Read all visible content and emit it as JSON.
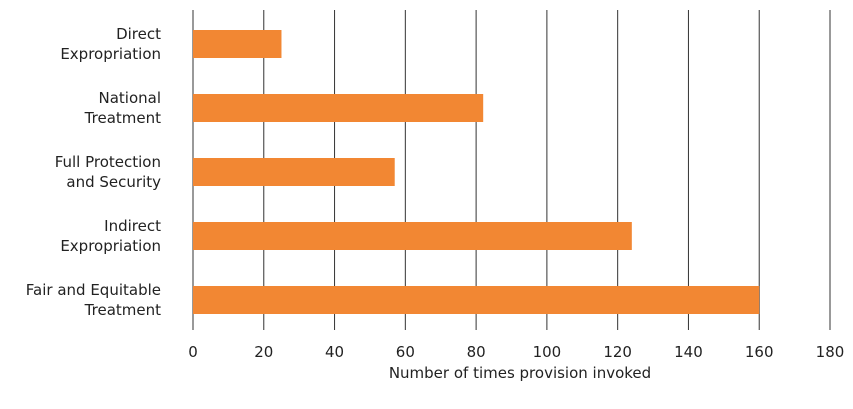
{
  "chart_data": {
    "type": "bar",
    "orientation": "horizontal",
    "categories": [
      [
        "Direct",
        "Expropriation"
      ],
      [
        "National",
        "Treatment"
      ],
      [
        "Full Protection",
        "and Security"
      ],
      [
        "Indirect",
        "Expropriation"
      ],
      [
        "Fair and Equitable",
        "Treatment"
      ]
    ],
    "values": [
      25,
      82,
      57,
      124,
      160
    ],
    "xlabel": "Number of times provision invoked",
    "ylabel": "",
    "xlim": [
      0,
      180
    ],
    "x_ticks": [
      "0",
      "20",
      "40",
      "60",
      "80",
      "100",
      "120",
      "140",
      "160",
      "180"
    ],
    "grid": "vertical",
    "bar_color": "#F28733"
  }
}
